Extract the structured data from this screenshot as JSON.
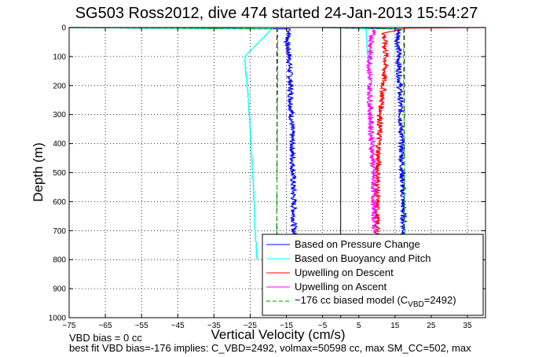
{
  "chart_data": {
    "type": "line",
    "title": "SG503 Ross2012, dive 474 started 24-Jan-2013 15:54:27",
    "xlabel": "Vertical Velocity (cm/s)",
    "ylabel": "Depth (m)",
    "xlim": [
      -75,
      40
    ],
    "ylim": [
      0,
      1000
    ],
    "y_reversed": true,
    "grid": true,
    "x_ticks": [
      -75,
      -65,
      -55,
      -45,
      -35,
      -25,
      -15,
      -5,
      5,
      15,
      25,
      35
    ],
    "y_ticks": [
      0,
      100,
      200,
      300,
      400,
      500,
      600,
      700,
      800,
      900,
      1000
    ],
    "legend_location": "bottom-right",
    "reference_lines": [
      {
        "x": 0,
        "style": "solid",
        "color": "#000000"
      },
      {
        "x": -17.6,
        "style": "dashed",
        "color": "#000000"
      },
      {
        "x": 17.6,
        "style": "dashed",
        "color": "#000000"
      }
    ],
    "series": [
      {
        "name": "Based on Pressure Change",
        "color": "#0000ff",
        "style": "solid",
        "jitter": 0.8,
        "x": [
          -75,
          -14,
          -14.8,
          -14.2,
          -13.9,
          -13.6,
          -13.4,
          -13.2,
          -13,
          -12.9,
          -12.8,
          -12.8
        ],
        "y": [
          0,
          5,
          50,
          100,
          200,
          300,
          400,
          500,
          600,
          700,
          760,
          780
        ]
      },
      {
        "name": "Based on Pressure Change",
        "color": "#0000ff",
        "style": "solid",
        "jitter": 0.8,
        "legend": false,
        "x": [
          -5,
          16,
          15.8,
          16,
          16.3,
          16.6,
          16.8,
          17,
          17.2,
          17.4,
          17.6
        ],
        "y": [
          0,
          5,
          50,
          100,
          200,
          300,
          400,
          500,
          600,
          700,
          780
        ]
      },
      {
        "name": "Based on Buoyancy and Pitch",
        "color": "#00ffff",
        "style": "solid",
        "jitter": 0.15,
        "x": [
          -75,
          -19,
          -26.5,
          -26.5,
          -25.8,
          -25.2,
          -24.8,
          -24.3,
          -23.9,
          -23.6,
          -23.2,
          -23
        ],
        "y": [
          0,
          5,
          100,
          110,
          200,
          300,
          400,
          500,
          600,
          700,
          780,
          800
        ]
      },
      {
        "name": "Based on Buoyancy and Pitch",
        "color": "#00ffff",
        "style": "solid",
        "jitter": 0.15,
        "legend": false,
        "x": [
          5,
          7,
          7.5,
          7.6,
          7.8
        ],
        "y": [
          0,
          5,
          100,
          110,
          120
        ]
      },
      {
        "name": "Upwelling on Descent",
        "color": "#ff0000",
        "style": "solid",
        "jitter": 0.8,
        "x": [
          40,
          18,
          12,
          12.5,
          11.8,
          11,
          10.5,
          10.2,
          10,
          10,
          10
        ],
        "y": [
          0,
          2,
          20,
          100,
          200,
          300,
          400,
          500,
          600,
          700,
          780
        ]
      },
      {
        "name": "Upwelling on Ascent",
        "color": "#ff00ff",
        "style": "solid",
        "jitter": 0.8,
        "x": [
          9,
          8,
          8,
          8.2,
          8.6,
          9,
          9.2,
          9.4,
          9.4
        ],
        "y": [
          0,
          100,
          200,
          300,
          400,
          500,
          600,
          700,
          780
        ]
      },
      {
        "name": "-176 cc biased model (C_VBD=2492)",
        "color": "#00cc00",
        "style": "dashed",
        "jitter": 0,
        "x": [
          -75,
          -17.4,
          -17.4,
          -17.4,
          -17.4,
          -17.5,
          -17.5,
          -17.6,
          -17.6,
          -17.7,
          -17.7
        ],
        "y": [
          0,
          5,
          50,
          100,
          200,
          300,
          400,
          500,
          600,
          700,
          780
        ]
      },
      {
        "name": "-176 cc biased model (C_VBD=2492)",
        "color": "#00cc00",
        "style": "dashed",
        "jitter": 0,
        "legend": false,
        "x": [
          -5,
          17.4,
          17.4,
          17.4,
          17.4,
          17.5,
          17.5,
          17.6,
          17.6,
          17.7,
          17.8,
          18.2
        ],
        "y": [
          0,
          5,
          50,
          100,
          200,
          300,
          400,
          500,
          600,
          700,
          780,
          800
        ]
      }
    ]
  },
  "legend": {
    "pressure": "Based on Pressure Change",
    "buoyancy": "Based on Buoyancy and Pitch",
    "descent": "Upwelling on Descent",
    "ascent": "Upwelling on Ascent",
    "model_prefix": "−176 cc biased model (C",
    "model_sub": "VBD",
    "model_suffix": "=2492)"
  },
  "footer": {
    "line1": "VBD bias = 0 cc",
    "line2": "best fit VBD bias=-176 implies: C_VBD=2492, volmax=50598 cc, max SM_CC=502, max"
  }
}
